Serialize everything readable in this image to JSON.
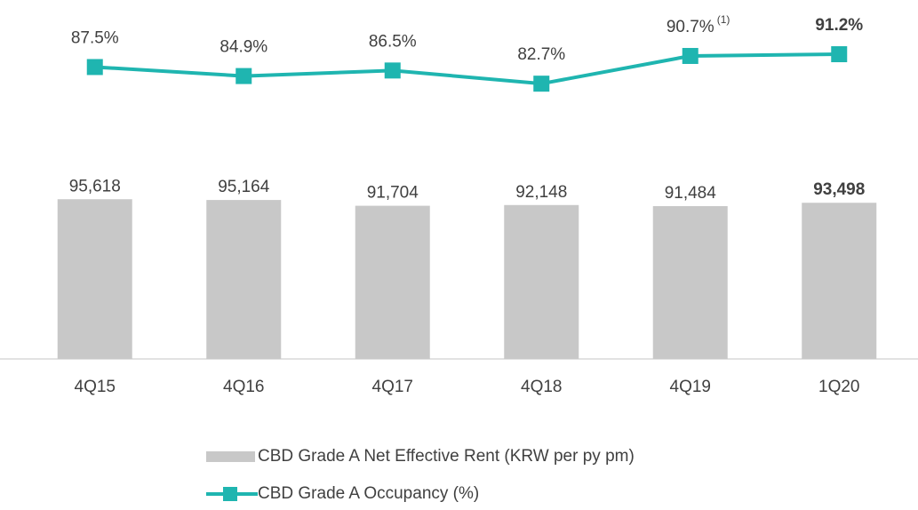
{
  "chart_data": {
    "type": "bar-line",
    "categories": [
      "4Q15",
      "4Q16",
      "4Q17",
      "4Q18",
      "4Q19",
      "1Q20"
    ],
    "series": [
      {
        "name": "CBD Grade A Net Effective Rent (KRW per py pm)",
        "type": "bar",
        "color": "#c8c8c8",
        "values": [
          95618,
          95164,
          91704,
          92148,
          91484,
          93498
        ],
        "value_labels": [
          "95,618",
          "95,164",
          "91,704",
          "92,148",
          "91,484",
          "93,498"
        ]
      },
      {
        "name": "CBD Grade A Occupancy (%)",
        "type": "line",
        "axis": "y2",
        "color": "#1fb5b0",
        "values": [
          87.5,
          84.9,
          86.5,
          82.7,
          90.7,
          91.2
        ],
        "value_labels": [
          "87.5%",
          "84.9%",
          "86.5%",
          "82.7%",
          "90.7%",
          "91.2%"
        ]
      }
    ],
    "annotations": [
      "(1)"
    ],
    "ylim": [
      0,
      200000
    ],
    "y2lim": [
      60,
      100
    ],
    "legend": "bottom"
  }
}
